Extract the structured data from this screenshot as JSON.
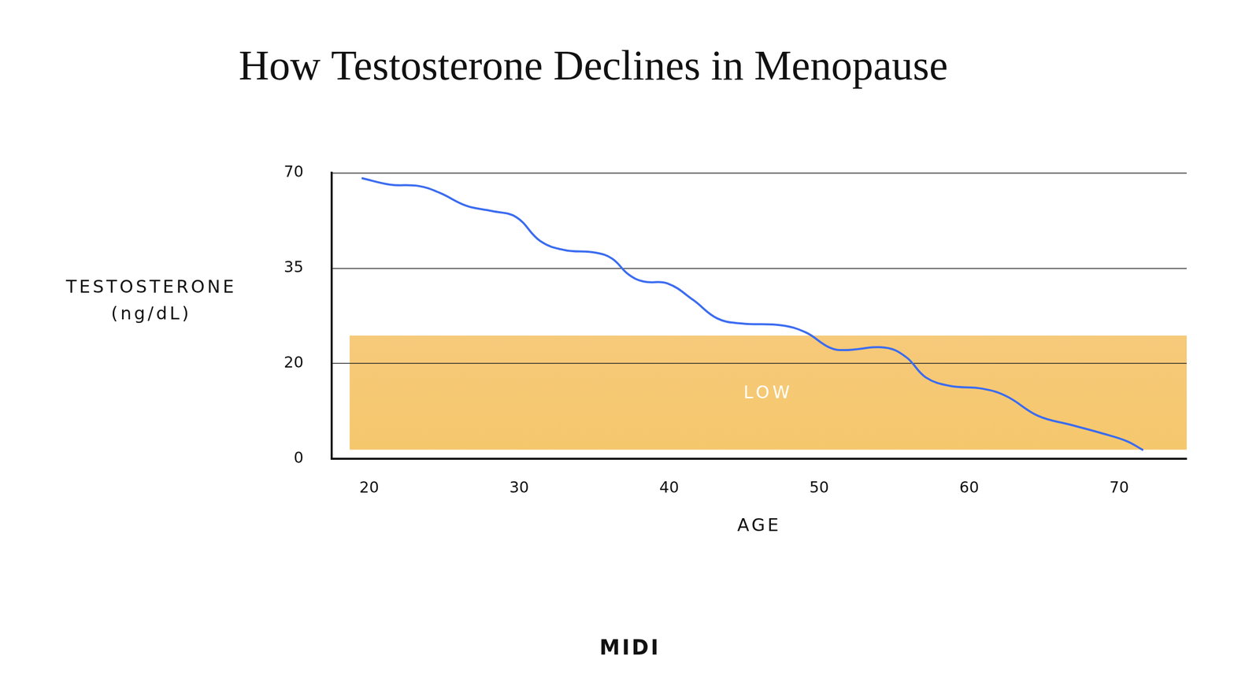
{
  "chart_data": {
    "type": "line",
    "title": "How Testosterone Declines in Menopause",
    "x_label": "AGE",
    "y_label": "TESTOSTERONE (ng/dL)",
    "x": [
      19.5,
      21.4,
      23.3,
      24.7,
      26.5,
      28.2,
      29.8,
      31.4,
      33.0,
      35.1,
      36.2,
      37.3,
      38.3,
      39.9,
      41.6,
      43.2,
      44.8,
      47.5,
      49.1,
      50.7,
      51.7,
      54.4,
      55.8,
      57.1,
      58.7,
      60.9,
      62.5,
      64.6,
      66.8,
      68.9,
      70.5,
      71.6
    ],
    "values": [
      68.1,
      65.7,
      65.2,
      62.7,
      57.9,
      56.0,
      53.8,
      45.0,
      41.7,
      40.7,
      38.5,
      34.0,
      32.9,
      32.6,
      30.0,
      27.1,
      26.3,
      26.0,
      24.9,
      22.5,
      22.1,
      22.5,
      21.0,
      17.1,
      15.3,
      14.7,
      13.1,
      9.0,
      7.1,
      5.3,
      3.7,
      1.8
    ],
    "color": "#3b6cf0",
    "line_style": "solid",
    "marker": "none",
    "xlim": [
      17.5,
      74.5
    ],
    "xticks": [
      20,
      30,
      40,
      50,
      60,
      70
    ],
    "ylim": [
      0,
      70
    ],
    "yticks": [
      0,
      20,
      35,
      70
    ],
    "grid": "y",
    "annotations": [
      {
        "text": "LOW",
        "x_range": [
          18.7,
          74.5
        ],
        "y_range": [
          1.9,
          24.4
        ],
        "color": "#f6c56f"
      }
    ],
    "brand": "MIDI"
  }
}
